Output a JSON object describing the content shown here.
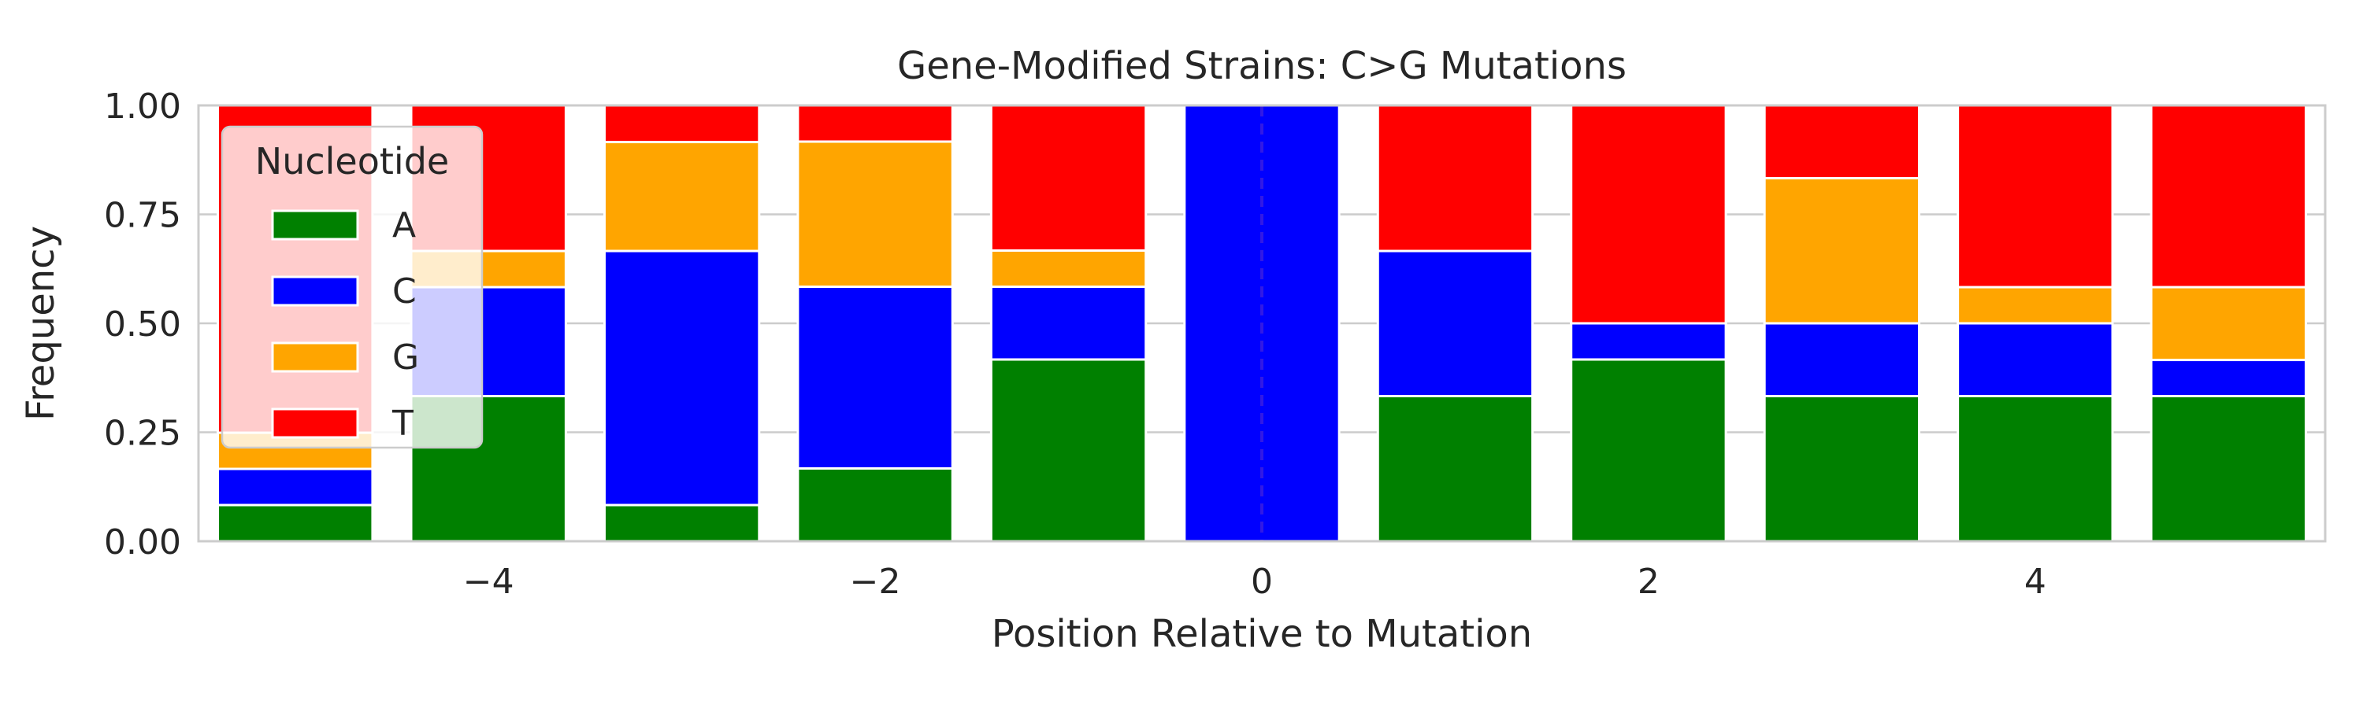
{
  "chart_data": {
    "type": "bar",
    "stacked": true,
    "title": "Gene-Modified Strains: C>G Mutations",
    "xlabel": "Position Relative to Mutation",
    "ylabel": "Frequency",
    "xlim": [
      -5.5,
      5.5
    ],
    "ylim": [
      0,
      1
    ],
    "x": [
      -5,
      -4,
      -3,
      -2,
      -1,
      0,
      1,
      2,
      3,
      4,
      5
    ],
    "x_ticks": [
      -4,
      -2,
      0,
      2,
      4
    ],
    "x_tick_labels": [
      "−4",
      "−2",
      "0",
      "2",
      "4"
    ],
    "y_ticks": [
      0,
      0.25,
      0.5,
      0.75,
      1.0
    ],
    "y_tick_labels": [
      "0.00",
      "0.25",
      "0.50",
      "0.75",
      "1.00"
    ],
    "grid": "horizontal",
    "reference_line": {
      "x": 0,
      "style": "dashed"
    },
    "series": [
      {
        "name": "A",
        "color": "#008000",
        "values": [
          0.083,
          0.333,
          0.083,
          0.167,
          0.417,
          0.0,
          0.333,
          0.417,
          0.333,
          0.333,
          0.333
        ]
      },
      {
        "name": "C",
        "color": "#0000ff",
        "values": [
          0.083,
          0.25,
          0.583,
          0.417,
          0.167,
          1.0,
          0.333,
          0.083,
          0.167,
          0.167,
          0.083
        ]
      },
      {
        "name": "G",
        "color": "#ffa500",
        "values": [
          0.083,
          0.083,
          0.25,
          0.333,
          0.083,
          0.0,
          0.0,
          0.0,
          0.333,
          0.083,
          0.167
        ]
      },
      {
        "name": "T",
        "color": "#ff0000",
        "values": [
          0.751,
          0.334,
          0.084,
          0.083,
          0.333,
          0.0,
          0.334,
          0.5,
          0.167,
          0.417,
          0.417
        ]
      }
    ],
    "legend": {
      "title": "Nucleotide",
      "placement": "upper-left"
    }
  }
}
